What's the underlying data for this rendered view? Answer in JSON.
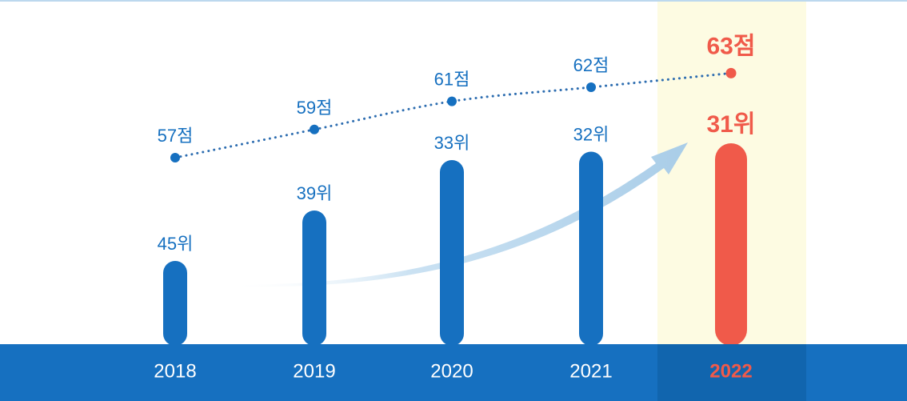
{
  "chart_data": {
    "type": "bar",
    "categories": [
      "2018",
      "2019",
      "2020",
      "2021",
      "2022"
    ],
    "series": [
      {
        "values": [
          45,
          39,
          33,
          32,
          31
        ],
        "labels": [
          "45위",
          "39위",
          "33위",
          "32위",
          "31위"
        ]
      },
      {
        "values": [
          57,
          59,
          61,
          62,
          63
        ],
        "labels": [
          "57점",
          "59점",
          "61점",
          "62점",
          "63점"
        ]
      }
    ],
    "highlight_category": "2022",
    "colors": {
      "primary": "#1670c0",
      "highlight": "#f05a4a",
      "highlight_bg": "#fdfbe2",
      "band": "#1670c0",
      "arrow": "#a9cde8"
    }
  }
}
